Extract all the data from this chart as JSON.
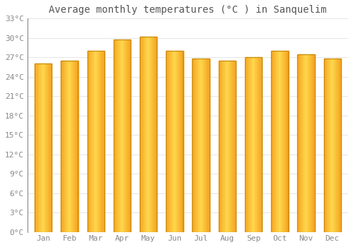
{
  "title": "Average monthly temperatures (°C ) in Sanquelim",
  "months": [
    "Jan",
    "Feb",
    "Mar",
    "Apr",
    "May",
    "Jun",
    "Jul",
    "Aug",
    "Sep",
    "Oct",
    "Nov",
    "Dec"
  ],
  "values": [
    26.0,
    26.5,
    28.0,
    29.8,
    30.2,
    28.0,
    26.8,
    26.5,
    27.0,
    28.0,
    27.5,
    26.8
  ],
  "bar_color_center": "#FFD84D",
  "bar_color_edge": "#F5A623",
  "bar_outline_color": "#C8880A",
  "ylim": [
    0,
    33
  ],
  "yticks": [
    0,
    3,
    6,
    9,
    12,
    15,
    18,
    21,
    24,
    27,
    30,
    33
  ],
  "background_color": "#ffffff",
  "grid_color": "#e0e0e0",
  "title_fontsize": 10,
  "tick_fontsize": 8,
  "font_family": "monospace",
  "bar_width": 0.65
}
